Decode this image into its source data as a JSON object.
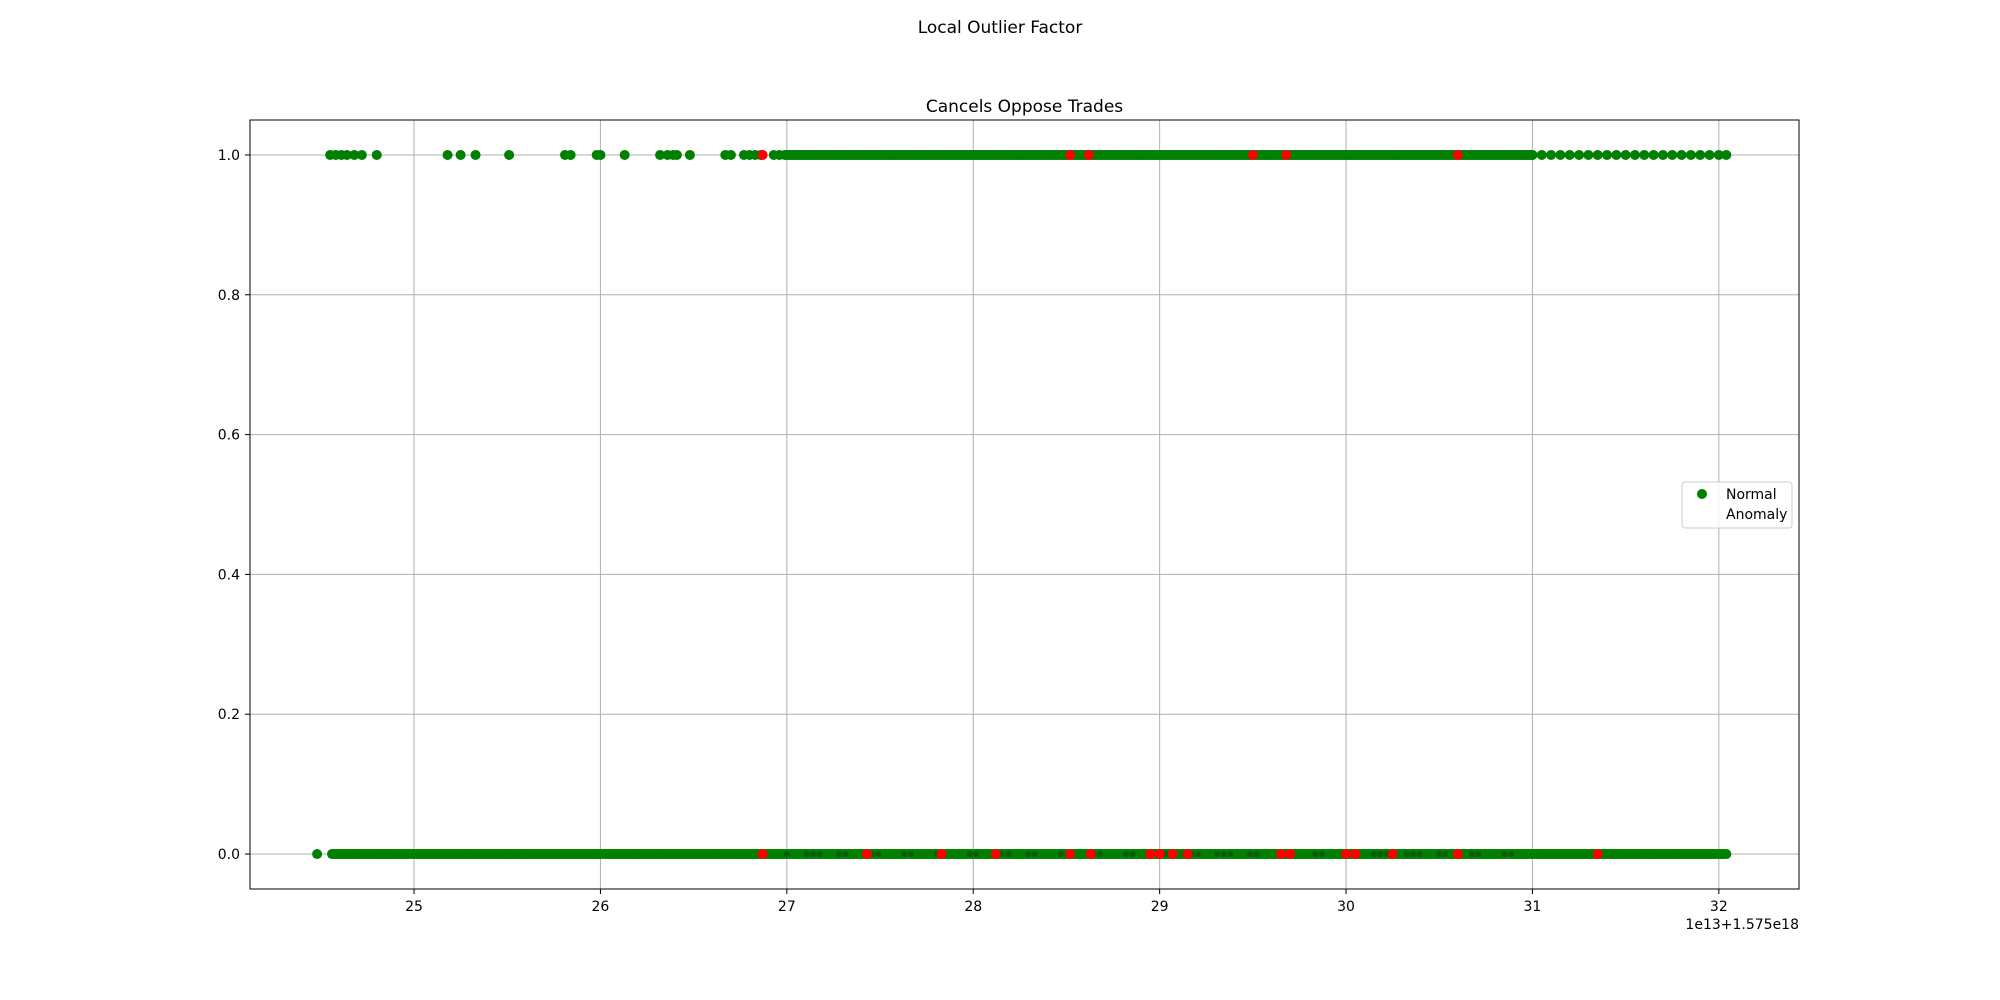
{
  "figure": {
    "suptitle": "Local Outlier Factor"
  },
  "chart_data": {
    "type": "scatter",
    "title": "Cancels Oppose Trades",
    "xlabel": "",
    "ylabel": "",
    "x_offset_label": "1e13+1.575e18",
    "x_ticks": [
      25,
      26,
      27,
      28,
      29,
      30,
      31,
      32
    ],
    "y_ticks": [
      0.0,
      0.2,
      0.4,
      0.6,
      0.8,
      1.0
    ],
    "y_tick_labels": [
      "0.0",
      "0.2",
      "0.4",
      "0.6",
      "0.8",
      "1.0"
    ],
    "xlim": [
      24.12,
      32.43
    ],
    "ylim": [
      -0.05,
      1.05
    ],
    "grid": true,
    "legend": {
      "placement": "center-right",
      "entries": [
        {
          "label": "Normal",
          "color": "#008000"
        },
        {
          "label": "Anomaly",
          "color": ""
        }
      ]
    },
    "series": [
      {
        "name": "Normal",
        "color": "#008000",
        "y_level_1": {
          "sparse_x": [
            24.55,
            24.58,
            24.61,
            24.64,
            24.68,
            24.72,
            24.8,
            25.18,
            25.25,
            25.33,
            25.51,
            25.81,
            25.84,
            25.98,
            26.0,
            26.13,
            26.32,
            26.36,
            26.39,
            26.41,
            26.48,
            26.67,
            26.7,
            26.77,
            26.8,
            26.83,
            26.86,
            26.93,
            26.96,
            26.99
          ],
          "dense_range": [
            27.0,
            31.0
          ],
          "tail_x": [
            31.0,
            31.05,
            31.1,
            31.15,
            31.2,
            31.25,
            31.3,
            31.35,
            31.4,
            31.45,
            31.5,
            31.55,
            31.6,
            31.65,
            31.7,
            31.75,
            31.8,
            31.85,
            31.9,
            31.95,
            32.0,
            32.04
          ]
        },
        "y_level_0": {
          "x": [
            24.48
          ],
          "dense_range": [
            24.56,
            32.04
          ]
        }
      },
      {
        "name": "Anomaly",
        "color": "#ff0000",
        "y_level_1": {
          "x": [
            26.87,
            28.52,
            28.62,
            29.5,
            29.68,
            30.6
          ]
        },
        "y_level_0": {
          "x": [
            26.87,
            27.43,
            27.83,
            28.12,
            28.52,
            28.63,
            28.95,
            29.0,
            29.07,
            29.15,
            29.65,
            29.7,
            30.0,
            30.05,
            30.25,
            30.6,
            31.35
          ]
        }
      }
    ]
  }
}
